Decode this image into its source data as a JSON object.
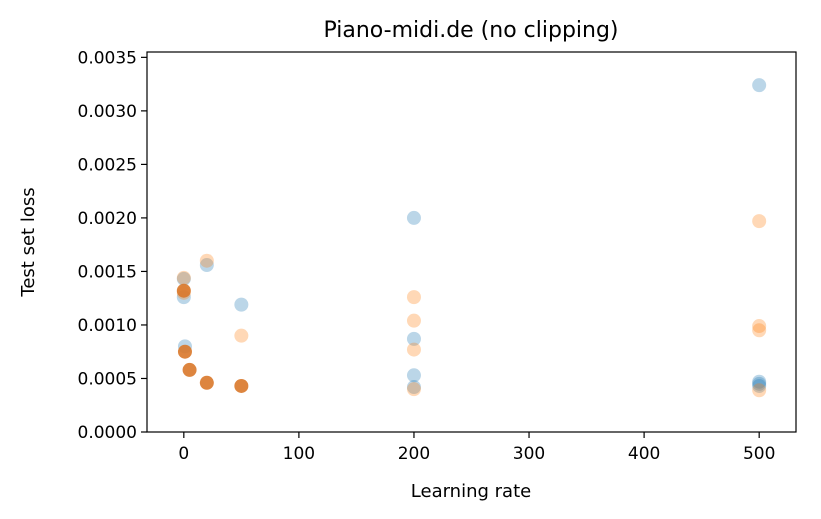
{
  "chart_data": {
    "type": "scatter",
    "title": "Piano-midi.de (no clipping)",
    "xlabel": "Learning rate",
    "ylabel": "Test set loss",
    "xlim": [
      -32,
      532
    ],
    "ylim": [
      0,
      0.00355
    ],
    "xticks": [
      0,
      100,
      200,
      300,
      400,
      500
    ],
    "xtick_labels": [
      "0",
      "100",
      "200",
      "300",
      "400",
      "500"
    ],
    "yticks": [
      0,
      0.0005,
      0.001,
      0.0015,
      0.002,
      0.0025,
      0.003,
      0.0035
    ],
    "ytick_labels": [
      "0.0000",
      "0.0005",
      "0.0010",
      "0.0015",
      "0.0020",
      "0.0025",
      "0.0030",
      "0.0035"
    ],
    "grid": false,
    "legend": "none",
    "series": [
      {
        "color": "#1f77b4",
        "opacity": 0.3,
        "points": [
          {
            "x": 0,
            "y": 0.00143
          },
          {
            "x": 0,
            "y": 0.00126
          },
          {
            "x": 1,
            "y": 0.0008
          },
          {
            "x": 20,
            "y": 0.00156
          },
          {
            "x": 50,
            "y": 0.00119
          },
          {
            "x": 200,
            "y": 0.002
          },
          {
            "x": 200,
            "y": 0.00087
          },
          {
            "x": 200,
            "y": 0.00053
          },
          {
            "x": 200,
            "y": 0.00042
          },
          {
            "x": 500,
            "y": 0.00324
          },
          {
            "x": 500,
            "y": 0.00047
          },
          {
            "x": 500,
            "y": 0.00045
          },
          {
            "x": 500,
            "y": 0.00043
          }
        ]
      },
      {
        "color": "#ff7f0e",
        "opacity": 0.3,
        "points": [
          {
            "x": 0,
            "y": 0.00144
          },
          {
            "x": 0,
            "y": 0.0013
          },
          {
            "x": 20,
            "y": 0.0016
          },
          {
            "x": 50,
            "y": 0.0009
          },
          {
            "x": 200,
            "y": 0.00126
          },
          {
            "x": 200,
            "y": 0.00104
          },
          {
            "x": 200,
            "y": 0.00077
          },
          {
            "x": 200,
            "y": 0.0004
          },
          {
            "x": 500,
            "y": 0.00197
          },
          {
            "x": 500,
            "y": 0.00099
          },
          {
            "x": 500,
            "y": 0.00095
          },
          {
            "x": 500,
            "y": 0.00039
          }
        ]
      },
      {
        "color": "#d9782a",
        "opacity": 0.9,
        "points": [
          {
            "x": 0,
            "y": 0.00132
          },
          {
            "x": 1,
            "y": 0.00075
          },
          {
            "x": 5,
            "y": 0.00058
          },
          {
            "x": 20,
            "y": 0.00046
          },
          {
            "x": 50,
            "y": 0.00043
          }
        ]
      }
    ]
  }
}
